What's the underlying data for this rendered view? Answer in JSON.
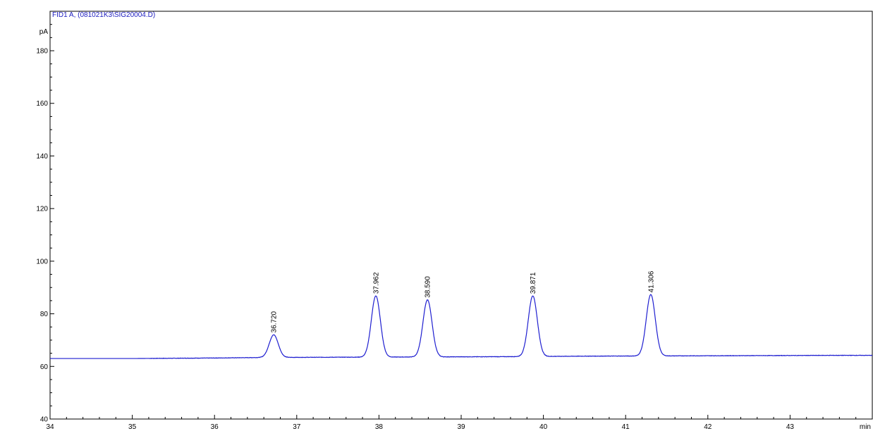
{
  "chart_data": {
    "type": "line",
    "title": "FID1 A,  (081021K3\\SIG20004.D)",
    "ylabel": "pA",
    "xlabel": "min",
    "xlim": [
      34,
      44
    ],
    "ylim": [
      40,
      195
    ],
    "x_ticks": [
      34,
      35,
      36,
      37,
      38,
      39,
      40,
      41,
      42,
      43
    ],
    "y_ticks": [
      40,
      60,
      80,
      100,
      120,
      140,
      160,
      180
    ],
    "grid": false,
    "colors": {
      "trace": "#1f1fd0",
      "axis": "#000000",
      "title": "#2020c0"
    },
    "baseline": [
      {
        "x": 34.0,
        "y": 63.0
      },
      {
        "x": 35.0,
        "y": 63.0
      },
      {
        "x": 36.0,
        "y": 63.2
      },
      {
        "x": 36.6,
        "y": 63.4
      },
      {
        "x": 37.5,
        "y": 63.5
      },
      {
        "x": 38.5,
        "y": 63.6
      },
      {
        "x": 39.5,
        "y": 63.7
      },
      {
        "x": 40.5,
        "y": 63.9
      },
      {
        "x": 41.5,
        "y": 64.0
      },
      {
        "x": 42.5,
        "y": 64.1
      },
      {
        "x": 43.5,
        "y": 64.2
      },
      {
        "x": 44.0,
        "y": 64.2
      }
    ],
    "peaks": [
      {
        "label": "36.720",
        "rt": 36.72,
        "height": 72.0,
        "sigma": 0.055
      },
      {
        "label": "37.962",
        "rt": 37.962,
        "height": 86.8,
        "sigma": 0.055
      },
      {
        "label": "38.590",
        "rt": 38.59,
        "height": 85.3,
        "sigma": 0.055
      },
      {
        "label": "39.871",
        "rt": 39.871,
        "height": 86.8,
        "sigma": 0.055
      },
      {
        "label": "41.306",
        "rt": 41.306,
        "height": 87.3,
        "sigma": 0.055
      }
    ]
  }
}
